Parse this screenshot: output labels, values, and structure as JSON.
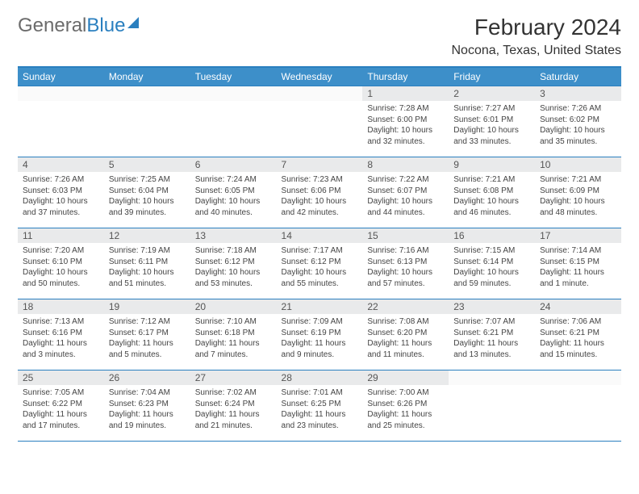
{
  "brand": {
    "part1": "General",
    "part2": "Blue"
  },
  "title": "February 2024",
  "location": "Nocona, Texas, United States",
  "colors": {
    "accent": "#2a7fbf",
    "header_bg": "#3d8fc9",
    "daybar_bg": "#e9eaeb",
    "text": "#333333"
  },
  "weekdays": [
    "Sunday",
    "Monday",
    "Tuesday",
    "Wednesday",
    "Thursday",
    "Friday",
    "Saturday"
  ],
  "weeks": [
    [
      null,
      null,
      null,
      null,
      {
        "d": "1",
        "sr": "7:28 AM",
        "ss": "6:00 PM",
        "dl": "10 hours and 32 minutes."
      },
      {
        "d": "2",
        "sr": "7:27 AM",
        "ss": "6:01 PM",
        "dl": "10 hours and 33 minutes."
      },
      {
        "d": "3",
        "sr": "7:26 AM",
        "ss": "6:02 PM",
        "dl": "10 hours and 35 minutes."
      }
    ],
    [
      {
        "d": "4",
        "sr": "7:26 AM",
        "ss": "6:03 PM",
        "dl": "10 hours and 37 minutes."
      },
      {
        "d": "5",
        "sr": "7:25 AM",
        "ss": "6:04 PM",
        "dl": "10 hours and 39 minutes."
      },
      {
        "d": "6",
        "sr": "7:24 AM",
        "ss": "6:05 PM",
        "dl": "10 hours and 40 minutes."
      },
      {
        "d": "7",
        "sr": "7:23 AM",
        "ss": "6:06 PM",
        "dl": "10 hours and 42 minutes."
      },
      {
        "d": "8",
        "sr": "7:22 AM",
        "ss": "6:07 PM",
        "dl": "10 hours and 44 minutes."
      },
      {
        "d": "9",
        "sr": "7:21 AM",
        "ss": "6:08 PM",
        "dl": "10 hours and 46 minutes."
      },
      {
        "d": "10",
        "sr": "7:21 AM",
        "ss": "6:09 PM",
        "dl": "10 hours and 48 minutes."
      }
    ],
    [
      {
        "d": "11",
        "sr": "7:20 AM",
        "ss": "6:10 PM",
        "dl": "10 hours and 50 minutes."
      },
      {
        "d": "12",
        "sr": "7:19 AM",
        "ss": "6:11 PM",
        "dl": "10 hours and 51 minutes."
      },
      {
        "d": "13",
        "sr": "7:18 AM",
        "ss": "6:12 PM",
        "dl": "10 hours and 53 minutes."
      },
      {
        "d": "14",
        "sr": "7:17 AM",
        "ss": "6:12 PM",
        "dl": "10 hours and 55 minutes."
      },
      {
        "d": "15",
        "sr": "7:16 AM",
        "ss": "6:13 PM",
        "dl": "10 hours and 57 minutes."
      },
      {
        "d": "16",
        "sr": "7:15 AM",
        "ss": "6:14 PM",
        "dl": "10 hours and 59 minutes."
      },
      {
        "d": "17",
        "sr": "7:14 AM",
        "ss": "6:15 PM",
        "dl": "11 hours and 1 minute."
      }
    ],
    [
      {
        "d": "18",
        "sr": "7:13 AM",
        "ss": "6:16 PM",
        "dl": "11 hours and 3 minutes."
      },
      {
        "d": "19",
        "sr": "7:12 AM",
        "ss": "6:17 PM",
        "dl": "11 hours and 5 minutes."
      },
      {
        "d": "20",
        "sr": "7:10 AM",
        "ss": "6:18 PM",
        "dl": "11 hours and 7 minutes."
      },
      {
        "d": "21",
        "sr": "7:09 AM",
        "ss": "6:19 PM",
        "dl": "11 hours and 9 minutes."
      },
      {
        "d": "22",
        "sr": "7:08 AM",
        "ss": "6:20 PM",
        "dl": "11 hours and 11 minutes."
      },
      {
        "d": "23",
        "sr": "7:07 AM",
        "ss": "6:21 PM",
        "dl": "11 hours and 13 minutes."
      },
      {
        "d": "24",
        "sr": "7:06 AM",
        "ss": "6:21 PM",
        "dl": "11 hours and 15 minutes."
      }
    ],
    [
      {
        "d": "25",
        "sr": "7:05 AM",
        "ss": "6:22 PM",
        "dl": "11 hours and 17 minutes."
      },
      {
        "d": "26",
        "sr": "7:04 AM",
        "ss": "6:23 PM",
        "dl": "11 hours and 19 minutes."
      },
      {
        "d": "27",
        "sr": "7:02 AM",
        "ss": "6:24 PM",
        "dl": "11 hours and 21 minutes."
      },
      {
        "d": "28",
        "sr": "7:01 AM",
        "ss": "6:25 PM",
        "dl": "11 hours and 23 minutes."
      },
      {
        "d": "29",
        "sr": "7:00 AM",
        "ss": "6:26 PM",
        "dl": "11 hours and 25 minutes."
      },
      null,
      null
    ]
  ],
  "labels": {
    "sunrise": "Sunrise:",
    "sunset": "Sunset:",
    "daylight": "Daylight:"
  }
}
